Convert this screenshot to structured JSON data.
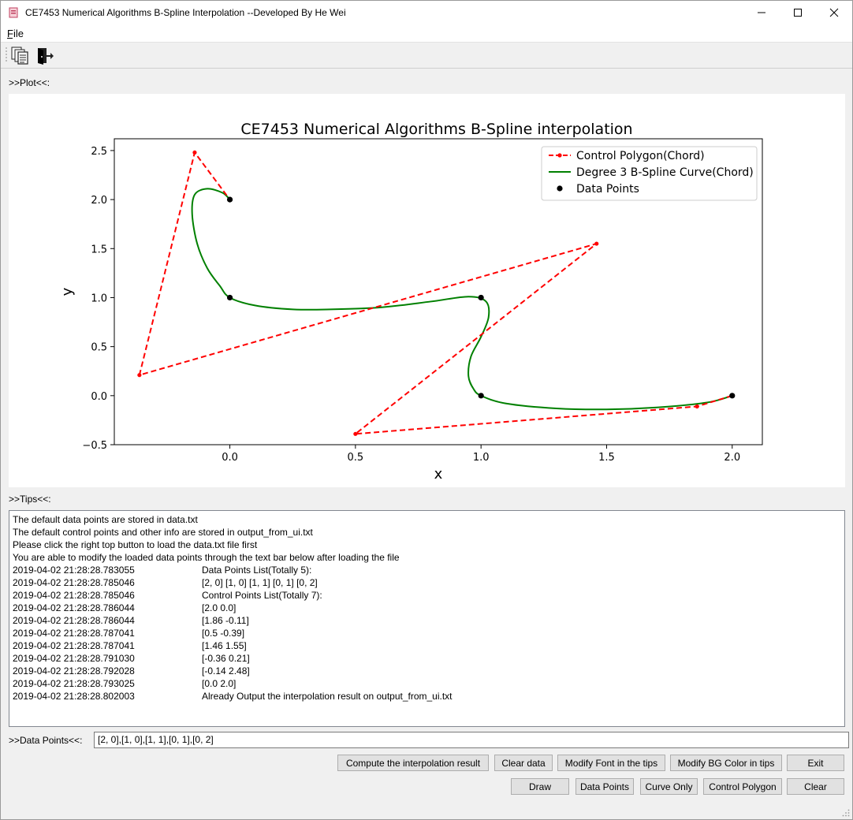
{
  "window": {
    "title": "CE7453 Numerical Algorithms B-Spline Interpolation --Developed By He Wei",
    "controls": {
      "minimize": "—",
      "maximize": "☐",
      "close": "✕"
    }
  },
  "menu": {
    "file": "File"
  },
  "toolbar": {
    "icons": [
      "copy-documents-icon",
      "exit-door-icon"
    ]
  },
  "sections": {
    "plot_label": ">>Plot<<:",
    "tips_label": ">>Tips<<:",
    "datapoints_label": ">>Data Points<<:"
  },
  "chart_data": {
    "type": "line",
    "title": "CE7453 Numerical Algorithms B-Spline interpolation",
    "xlabel": "x",
    "ylabel": "y",
    "xlim": [
      -0.46,
      2.12
    ],
    "ylim": [
      -0.5,
      2.62
    ],
    "xticks": [
      "0.0",
      "0.5",
      "1.0",
      "1.5",
      "2.0"
    ],
    "xtick_values": [
      0,
      0.5,
      1,
      1.5,
      2
    ],
    "yticks": [
      "−0.5",
      "0.0",
      "0.5",
      "1.0",
      "1.5",
      "2.0",
      "2.5"
    ],
    "ytick_values": [
      -0.5,
      0,
      0.5,
      1,
      1.5,
      2,
      2.5
    ],
    "grid": false,
    "legend_position": "top-right",
    "series": [
      {
        "name": "Control Polygon(Chord)",
        "style": "dashed-marker",
        "color": "#ff0000",
        "x": [
          2.0,
          1.86,
          0.5,
          1.46,
          -0.36,
          -0.14,
          0.0
        ],
        "y": [
          0.0,
          -0.11,
          -0.39,
          1.55,
          0.21,
          2.48,
          2.0
        ]
      },
      {
        "name": "Degree 3 B-Spline Curve(Chord)",
        "style": "solid",
        "color": "#008000",
        "x": [
          0.0,
          -0.03,
          -0.09,
          -0.14,
          -0.15,
          -0.13,
          -0.09,
          -0.04,
          0.0,
          0.1,
          0.25,
          0.4,
          0.6,
          0.8,
          0.95,
          1.02,
          1.03,
          1.0,
          0.96,
          0.95,
          0.97,
          1.0,
          1.1,
          1.3,
          1.5,
          1.7,
          1.9,
          2.0
        ],
        "y": [
          2.0,
          2.07,
          2.11,
          2.05,
          1.85,
          1.55,
          1.3,
          1.12,
          1.0,
          0.92,
          0.88,
          0.88,
          0.9,
          0.96,
          1.01,
          0.96,
          0.8,
          0.6,
          0.4,
          0.2,
          0.07,
          0.0,
          -0.08,
          -0.13,
          -0.14,
          -0.12,
          -0.07,
          0.0
        ]
      },
      {
        "name": "Data Points",
        "style": "points",
        "color": "#000000",
        "x": [
          2,
          1,
          1,
          0,
          0
        ],
        "y": [
          0,
          0,
          1,
          1,
          2
        ]
      }
    ]
  },
  "tips": {
    "intro": [
      "The default data points are stored in data.txt",
      "The default control points and other info are stored in output_from_ui.txt",
      "Please click the right top button to load the data.txt file first",
      "You are able to modify the loaded data points through the text bar below after loading the file"
    ],
    "log": [
      {
        "ts": "2019-04-02 21:28:28.783055",
        "msg": "Data Points List(Totally 5):"
      },
      {
        "ts": "2019-04-02 21:28:28.785046",
        "msg": "[2, 0] [1, 0] [1, 1] [0, 1] [0, 2]"
      },
      {
        "ts": "2019-04-02 21:28:28.785046",
        "msg": "Control Points List(Totally 7):"
      },
      {
        "ts": "2019-04-02 21:28:28.786044",
        "msg": "[2.0 0.0]"
      },
      {
        "ts": "2019-04-02 21:28:28.786044",
        "msg": "[1.86 -0.11]"
      },
      {
        "ts": "2019-04-02 21:28:28.787041",
        "msg": "[0.5 -0.39]"
      },
      {
        "ts": "2019-04-02 21:28:28.787041",
        "msg": "[1.46 1.55]"
      },
      {
        "ts": "2019-04-02 21:28:28.791030",
        "msg": "[-0.36 0.21]"
      },
      {
        "ts": "2019-04-02 21:28:28.792028",
        "msg": "[-0.14 2.48]"
      },
      {
        "ts": "2019-04-02 21:28:28.793025",
        "msg": "[0.0 2.0]"
      },
      {
        "ts": "2019-04-02 21:28:28.802003",
        "msg": "Already Output the interpolation result on output_from_ui.txt"
      }
    ]
  },
  "datapoints_input": {
    "value": "[2, 0],[1, 0],[1, 1],[0, 1],[0, 2]"
  },
  "buttons": {
    "row1": [
      "Compute the interpolation result",
      "Clear data",
      "Modify Font in the tips",
      "Modify BG Color in tips",
      "Exit"
    ],
    "row2": [
      "Draw",
      "Data Points",
      "Curve Only",
      "Control Polygon",
      "Clear"
    ]
  }
}
